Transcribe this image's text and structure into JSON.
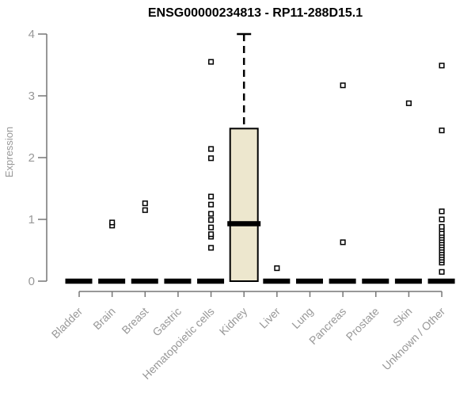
{
  "title": "ENSG00000234813 - RP11-288D15.1",
  "chart_data": {
    "type": "boxplot",
    "title": "ENSG00000234813 - RP11-288D15.1",
    "xlabel": "",
    "ylabel": "Expression",
    "ylim": [
      0,
      4
    ],
    "yticks": [
      0,
      1,
      2,
      3,
      4
    ],
    "grid": false,
    "legend": false,
    "categories": [
      "Bladder",
      "Brain",
      "Breast",
      "Gastric",
      "Hematopoietic cells",
      "Kidney",
      "Liver",
      "Lung",
      "Pancreas",
      "Prostate",
      "Skin",
      "Unknown / Other"
    ],
    "boxes": [
      {
        "category": "Bladder",
        "q1": 0,
        "median": 0,
        "q3": 0,
        "whisker_low": 0,
        "whisker_high": 0,
        "outliers": []
      },
      {
        "category": "Brain",
        "q1": 0,
        "median": 0,
        "q3": 0,
        "whisker_low": 0,
        "whisker_high": 0,
        "outliers": [
          0.9,
          0.95
        ]
      },
      {
        "category": "Breast",
        "q1": 0,
        "median": 0,
        "q3": 0,
        "whisker_low": 0,
        "whisker_high": 0,
        "outliers": [
          1.15,
          1.26
        ]
      },
      {
        "category": "Gastric",
        "q1": 0,
        "median": 0,
        "q3": 0,
        "whisker_low": 0,
        "whisker_high": 0,
        "outliers": []
      },
      {
        "category": "Hematopoietic cells",
        "q1": 0,
        "median": 0,
        "q3": 0,
        "whisker_low": 0,
        "whisker_high": 0,
        "outliers": [
          0.54,
          0.72,
          0.76,
          0.87,
          0.99,
          1.09,
          1.24,
          1.37,
          1.99,
          2.14,
          3.55
        ]
      },
      {
        "category": "Kidney",
        "q1": 0,
        "median": 0.93,
        "q3": 2.47,
        "whisker_low": 0,
        "whisker_high": 4.0,
        "outliers": []
      },
      {
        "category": "Liver",
        "q1": 0,
        "median": 0,
        "q3": 0,
        "whisker_low": 0,
        "whisker_high": 0,
        "outliers": [
          0.21
        ]
      },
      {
        "category": "Lung",
        "q1": 0,
        "median": 0,
        "q3": 0,
        "whisker_low": 0,
        "whisker_high": 0,
        "outliers": []
      },
      {
        "category": "Pancreas",
        "q1": 0,
        "median": 0,
        "q3": 0,
        "whisker_low": 0,
        "whisker_high": 0,
        "outliers": [
          0.63,
          3.17
        ]
      },
      {
        "category": "Prostate",
        "q1": 0,
        "median": 0,
        "q3": 0,
        "whisker_low": 0,
        "whisker_high": 0,
        "outliers": []
      },
      {
        "category": "Skin",
        "q1": 0,
        "median": 0,
        "q3": 0,
        "whisker_low": 0,
        "whisker_high": 0,
        "outliers": [
          2.88
        ]
      },
      {
        "category": "Unknown / Other",
        "q1": 0,
        "median": 0,
        "q3": 0,
        "whisker_low": 0,
        "whisker_high": 0,
        "outliers": [
          0.15,
          0.3,
          0.34,
          0.38,
          0.42,
          0.46,
          0.5,
          0.54,
          0.58,
          0.62,
          0.66,
          0.7,
          0.74,
          0.78,
          0.84,
          0.88,
          1.0,
          1.13,
          2.44,
          3.49
        ]
      }
    ],
    "colors": {
      "box_fill": "#EDE7CE",
      "box_border": "#000000",
      "median": "#000000",
      "whisker": "#000000",
      "outlier_stroke": "#000000",
      "outlier_fill": "#ffffff",
      "axis": "#777777",
      "tick_text": "#989898",
      "title_text": "#000000"
    }
  }
}
